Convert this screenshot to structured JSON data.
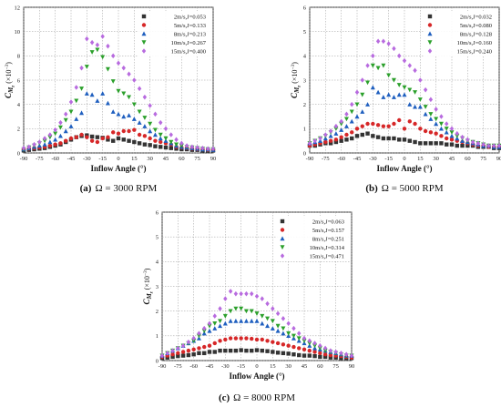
{
  "chart_data": [
    {
      "type": "scatter",
      "caption_letter": "(a)",
      "caption_text": "Ω = 3000 RPM",
      "xlabel": "Inflow Angle (°)",
      "ylabel_main": "C",
      "ylabel_sub": "M",
      "ylabel_subsub": "z",
      "ylabel_unit": "(×10",
      "ylabel_exp": "−3",
      "ylabel_close": ")",
      "xlim": [
        -90,
        90
      ],
      "ylim": [
        0,
        12
      ],
      "xticks": [
        "-90",
        "-75",
        "-60",
        "-45",
        "-30",
        "-15",
        "0",
        "15",
        "30",
        "45",
        "60",
        "75",
        "90"
      ],
      "yticks": [
        "0",
        "2",
        "4",
        "6",
        "8",
        "10",
        "12"
      ],
      "x": [
        -90,
        -85,
        -80,
        -75,
        -70,
        -65,
        -60,
        -55,
        -50,
        -45,
        -40,
        -35,
        -30,
        -25,
        -20,
        -15,
        -10,
        -5,
        0,
        5,
        10,
        15,
        20,
        25,
        30,
        35,
        40,
        45,
        50,
        55,
        60,
        65,
        70,
        75,
        80,
        85,
        90
      ],
      "series": [
        {
          "name": "2m/s,J=0.053",
          "color": "#333333",
          "marker": "square",
          "values": [
            0.2,
            0.25,
            0.3,
            0.35,
            0.4,
            0.5,
            0.6,
            0.7,
            0.9,
            1.1,
            1.3,
            1.4,
            1.45,
            1.35,
            1.3,
            1.25,
            1.1,
            1.0,
            1.2,
            1.1,
            1.0,
            0.9,
            0.8,
            0.7,
            0.65,
            0.55,
            0.5,
            0.45,
            0.4,
            0.35,
            0.3,
            0.3,
            0.25,
            0.25,
            0.2,
            0.2,
            0.2
          ]
        },
        {
          "name": "5m/s,J=0.133",
          "color": "#d62728",
          "marker": "circle",
          "values": [
            0.3,
            0.35,
            0.4,
            0.45,
            0.5,
            0.6,
            0.7,
            0.8,
            1.0,
            1.2,
            1.3,
            1.5,
            1.3,
            1.0,
            0.9,
            1.2,
            1.3,
            1.7,
            1.6,
            1.8,
            1.8,
            1.9,
            1.5,
            1.4,
            1.2,
            1.0,
            0.9,
            0.8,
            0.7,
            0.5,
            0.45,
            0.4,
            0.35,
            0.3,
            0.3,
            0.25,
            0.25
          ]
        },
        {
          "name": "8m/s,J=0.213",
          "color": "#1f5fbf",
          "marker": "triangle-up",
          "values": [
            0.3,
            0.4,
            0.5,
            0.6,
            0.7,
            0.9,
            1.1,
            1.4,
            1.8,
            2.2,
            2.8,
            3.3,
            4.9,
            4.8,
            4.3,
            4.9,
            4.1,
            3.4,
            3.2,
            3.0,
            3.1,
            2.8,
            2.5,
            2.2,
            1.8,
            1.5,
            1.2,
            1.0,
            0.8,
            0.6,
            0.5,
            0.45,
            0.4,
            0.35,
            0.3,
            0.3,
            0.25
          ]
        },
        {
          "name": "10m/s,J=0.267",
          "color": "#2ca02c",
          "marker": "triangle-down",
          "values": [
            0.3,
            0.45,
            0.6,
            0.8,
            1.0,
            1.3,
            1.6,
            2.1,
            2.7,
            3.4,
            4.3,
            5.3,
            7.1,
            8.3,
            8.5,
            7.9,
            6.9,
            5.9,
            5.1,
            4.9,
            4.6,
            4.0,
            3.4,
            2.9,
            2.4,
            1.9,
            1.5,
            1.2,
            0.9,
            0.7,
            0.6,
            0.5,
            0.45,
            0.4,
            0.35,
            0.3,
            0.3
          ]
        },
        {
          "name": "15m/s,J=0.400",
          "color": "#b86bdf",
          "marker": "diamond",
          "values": [
            0.4,
            0.5,
            0.7,
            0.9,
            1.2,
            1.5,
            1.9,
            2.5,
            3.2,
            4.2,
            5.4,
            7.0,
            9.4,
            9.1,
            8.9,
            9.6,
            8.8,
            8.0,
            7.4,
            7.0,
            6.5,
            6.0,
            5.3,
            4.6,
            3.9,
            3.2,
            2.5,
            2.0,
            1.5,
            1.1,
            0.8,
            0.6,
            0.5,
            0.45,
            0.4,
            0.35,
            0.35
          ]
        }
      ]
    },
    {
      "type": "scatter",
      "caption_letter": "(b)",
      "caption_text": "Ω = 5000 RPM",
      "xlabel": "Inflow Angle (°)",
      "ylabel_main": "C",
      "ylabel_sub": "M",
      "ylabel_subsub": "z",
      "ylabel_unit": "(×10",
      "ylabel_exp": "−3",
      "ylabel_close": ")",
      "xlim": [
        -90,
        90
      ],
      "ylim": [
        0,
        6
      ],
      "xticks": [
        "-90",
        "-75",
        "-60",
        "-45",
        "-30",
        "-15",
        "0",
        "15",
        "30",
        "45",
        "60",
        "75",
        "90"
      ],
      "yticks": [
        "0",
        "1",
        "2",
        "3",
        "4",
        "5",
        "6"
      ],
      "x": [
        -90,
        -85,
        -80,
        -75,
        -70,
        -65,
        -60,
        -55,
        -50,
        -45,
        -40,
        -35,
        -30,
        -25,
        -20,
        -15,
        -10,
        -5,
        0,
        5,
        10,
        15,
        20,
        25,
        30,
        35,
        40,
        45,
        50,
        55,
        60,
        65,
        70,
        75,
        80,
        85,
        90
      ],
      "series": [
        {
          "name": "2m/s,J=0.032",
          "color": "#333333",
          "marker": "square",
          "values": [
            0.3,
            0.3,
            0.35,
            0.4,
            0.4,
            0.45,
            0.5,
            0.55,
            0.6,
            0.7,
            0.75,
            0.8,
            0.7,
            0.65,
            0.6,
            0.6,
            0.6,
            0.55,
            0.55,
            0.5,
            0.45,
            0.4,
            0.4,
            0.4,
            0.4,
            0.4,
            0.35,
            0.35,
            0.3,
            0.3,
            0.3,
            0.3,
            0.25,
            0.25,
            0.25,
            0.2,
            0.2
          ]
        },
        {
          "name": "5m/s,J=0.080",
          "color": "#d62728",
          "marker": "circle",
          "values": [
            0.3,
            0.35,
            0.4,
            0.45,
            0.5,
            0.55,
            0.65,
            0.75,
            0.85,
            1.0,
            1.1,
            1.2,
            1.2,
            1.15,
            1.1,
            1.1,
            1.2,
            1.35,
            1.0,
            1.3,
            1.2,
            1.0,
            0.9,
            0.85,
            0.8,
            0.7,
            0.6,
            0.55,
            0.5,
            0.45,
            0.4,
            0.35,
            0.3,
            0.3,
            0.25,
            0.25,
            0.25
          ]
        },
        {
          "name": "8m/s,J=0.128",
          "color": "#1f5fbf",
          "marker": "triangle-up",
          "values": [
            0.4,
            0.45,
            0.5,
            0.6,
            0.7,
            0.8,
            0.95,
            1.1,
            1.3,
            1.5,
            1.7,
            2.0,
            2.7,
            2.5,
            2.3,
            2.4,
            2.3,
            2.4,
            2.4,
            2.0,
            1.9,
            1.9,
            1.6,
            1.4,
            1.2,
            1.0,
            0.85,
            0.7,
            0.6,
            0.5,
            0.45,
            0.4,
            0.35,
            0.3,
            0.3,
            0.25,
            0.25
          ]
        },
        {
          "name": "10m/s,J=0.160",
          "color": "#2ca02c",
          "marker": "triangle-down",
          "values": [
            0.4,
            0.5,
            0.6,
            0.7,
            0.85,
            1.0,
            1.2,
            1.4,
            1.7,
            2.0,
            2.4,
            2.9,
            3.6,
            3.5,
            3.6,
            3.2,
            3.0,
            2.8,
            2.7,
            2.6,
            2.5,
            2.2,
            1.9,
            1.6,
            1.4,
            1.2,
            1.0,
            0.85,
            0.7,
            0.6,
            0.5,
            0.45,
            0.4,
            0.35,
            0.3,
            0.3,
            0.3
          ]
        },
        {
          "name": "15m/s,J=0.240",
          "color": "#b86bdf",
          "marker": "diamond",
          "values": [
            0.4,
            0.5,
            0.6,
            0.75,
            0.9,
            1.1,
            1.3,
            1.6,
            2.0,
            2.5,
            3.0,
            3.6,
            4.0,
            4.6,
            4.6,
            4.5,
            4.3,
            4.0,
            3.8,
            3.6,
            3.4,
            3.0,
            2.6,
            2.2,
            1.8,
            1.5,
            1.2,
            1.0,
            0.8,
            0.65,
            0.55,
            0.45,
            0.4,
            0.35,
            0.3,
            0.3,
            0.3
          ]
        }
      ]
    },
    {
      "type": "scatter",
      "caption_letter": "(c)",
      "caption_text": "Ω = 8000 RPM",
      "xlabel": "Inflow Angle (°)",
      "ylabel_main": "C",
      "ylabel_sub": "M",
      "ylabel_subsub": "z",
      "ylabel_unit": "(×10",
      "ylabel_exp": "−3",
      "ylabel_close": ")",
      "xlim": [
        -90,
        90
      ],
      "ylim": [
        0,
        6
      ],
      "xticks": [
        "-90",
        "-75",
        "-60",
        "-45",
        "-30",
        "-15",
        "0",
        "15",
        "30",
        "45",
        "60",
        "75",
        "90"
      ],
      "yticks": [
        "0",
        "1",
        "2",
        "3",
        "4",
        "5",
        "6"
      ],
      "x": [
        -90,
        -85,
        -80,
        -75,
        -70,
        -65,
        -60,
        -55,
        -50,
        -45,
        -40,
        -35,
        -30,
        -25,
        -20,
        -15,
        -10,
        -5,
        0,
        5,
        10,
        15,
        20,
        25,
        30,
        35,
        40,
        45,
        50,
        55,
        60,
        65,
        70,
        75,
        80,
        85,
        90
      ],
      "series": [
        {
          "name": "2m/s,J=0.063",
          "color": "#333333",
          "marker": "square",
          "values": [
            0.1,
            0.12,
            0.15,
            0.18,
            0.2,
            0.22,
            0.25,
            0.3,
            0.3,
            0.35,
            0.35,
            0.4,
            0.4,
            0.4,
            0.4,
            0.42,
            0.4,
            0.4,
            0.42,
            0.4,
            0.38,
            0.35,
            0.32,
            0.3,
            0.28,
            0.25,
            0.22,
            0.2,
            0.2,
            0.18,
            0.15,
            0.15,
            0.12,
            0.12,
            0.1,
            0.1,
            0.1
          ]
        },
        {
          "name": "5m/s,J=0.157",
          "color": "#d62728",
          "marker": "circle",
          "values": [
            0.15,
            0.2,
            0.25,
            0.3,
            0.35,
            0.4,
            0.45,
            0.5,
            0.55,
            0.6,
            0.7,
            0.8,
            0.85,
            0.9,
            0.9,
            0.9,
            0.9,
            0.88,
            0.85,
            0.85,
            0.8,
            0.75,
            0.7,
            0.65,
            0.6,
            0.55,
            0.5,
            0.45,
            0.4,
            0.35,
            0.3,
            0.25,
            0.22,
            0.2,
            0.18,
            0.15,
            0.12
          ]
        },
        {
          "name": "8m/s,J=0.251",
          "color": "#1f5fbf",
          "marker": "triangle-up",
          "values": [
            0.2,
            0.3,
            0.4,
            0.5,
            0.6,
            0.7,
            0.8,
            0.9,
            1.1,
            1.2,
            1.3,
            1.4,
            1.5,
            1.6,
            1.6,
            1.6,
            1.6,
            1.6,
            1.6,
            1.5,
            1.4,
            1.3,
            1.2,
            1.1,
            1.0,
            0.9,
            0.8,
            0.7,
            0.6,
            0.5,
            0.45,
            0.4,
            0.35,
            0.3,
            0.25,
            0.2,
            0.2
          ]
        },
        {
          "name": "10m/s,J=0.314",
          "color": "#2ca02c",
          "marker": "triangle-down",
          "values": [
            0.2,
            0.3,
            0.4,
            0.5,
            0.6,
            0.7,
            0.8,
            1.0,
            1.2,
            1.4,
            1.5,
            1.6,
            1.8,
            2.0,
            2.1,
            2.1,
            2.0,
            2.0,
            1.9,
            1.8,
            1.7,
            1.6,
            1.4,
            1.3,
            1.1,
            1.0,
            0.9,
            0.8,
            0.7,
            0.6,
            0.5,
            0.4,
            0.35,
            0.3,
            0.25,
            0.2,
            0.2
          ]
        },
        {
          "name": "15m/s,J=0.471",
          "color": "#b86bdf",
          "marker": "diamond",
          "values": [
            0.2,
            0.3,
            0.4,
            0.5,
            0.6,
            0.75,
            0.9,
            1.1,
            1.3,
            1.5,
            1.8,
            2.1,
            2.5,
            2.8,
            2.7,
            2.7,
            2.7,
            2.7,
            2.6,
            2.5,
            2.3,
            2.1,
            1.9,
            1.7,
            1.5,
            1.3,
            1.1,
            0.9,
            0.8,
            0.7,
            0.6,
            0.5,
            0.4,
            0.35,
            0.3,
            0.25,
            0.2
          ]
        }
      ]
    }
  ]
}
